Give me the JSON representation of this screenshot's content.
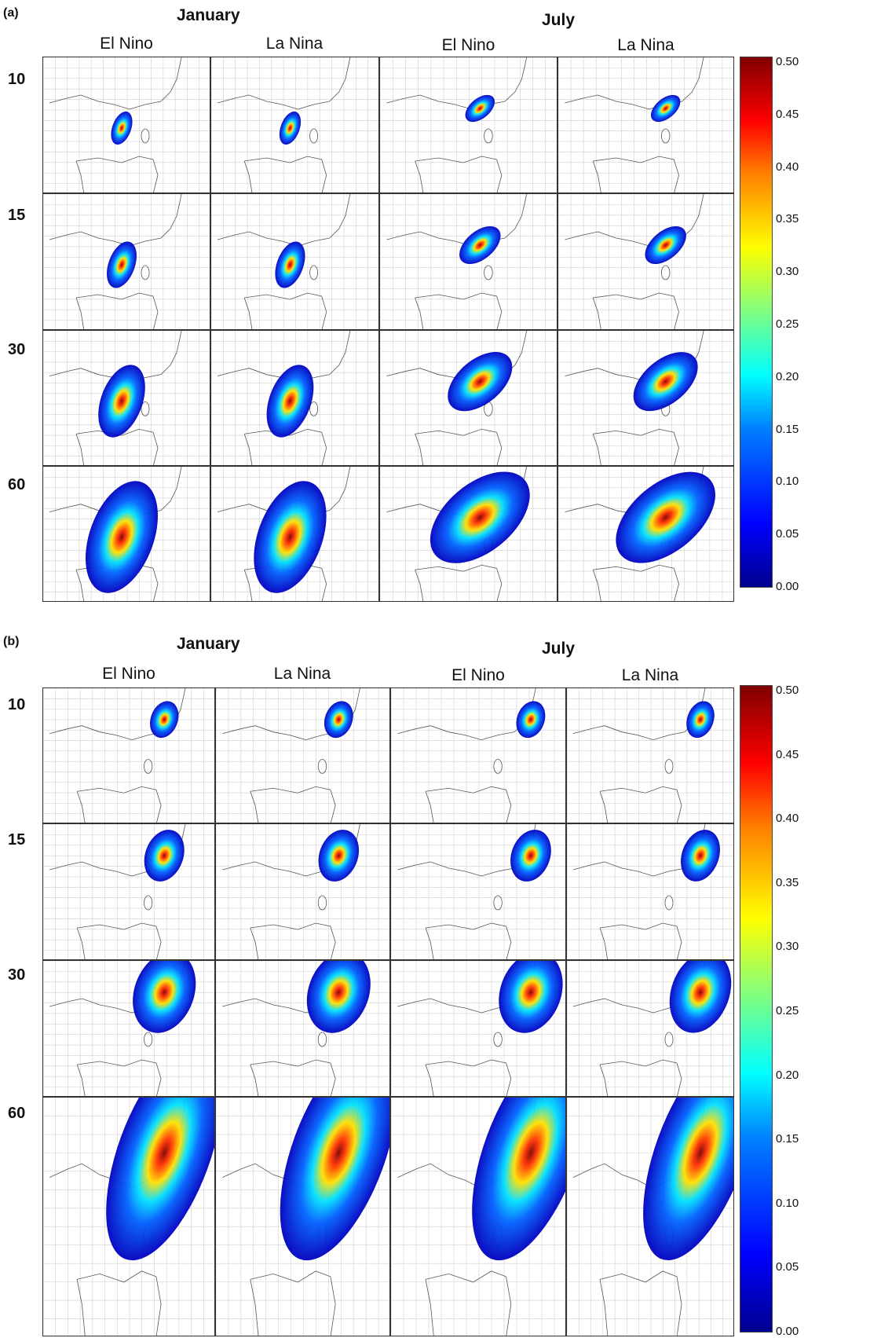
{
  "panels": [
    {
      "letter": "(a)",
      "months": [
        "January",
        "July"
      ],
      "columns": [
        "El Nino",
        "La Nina",
        "El Nino",
        "La Nina"
      ],
      "rows": [
        "10",
        "15",
        "30",
        "60"
      ],
      "colorbar_ticks": [
        "0.50",
        "0.45",
        "0.40",
        "0.35",
        "0.30",
        "0.25",
        "0.20",
        "0.15",
        "0.10",
        "0.05",
        "0.00"
      ]
    },
    {
      "letter": "(b)",
      "months": [
        "January",
        "July"
      ],
      "columns": [
        "El Nino",
        "La Nina",
        "El Nino",
        "La Nina"
      ],
      "rows": [
        "10",
        "15",
        "30",
        "60"
      ],
      "colorbar_ticks": [
        "0.50",
        "0.45",
        "0.40",
        "0.35",
        "0.30",
        "0.25",
        "0.20",
        "0.15",
        "0.10",
        "0.05",
        "0.00"
      ]
    }
  ],
  "colorscale": [
    "#00008f",
    "#0000ff",
    "#0080ff",
    "#00ffff",
    "#80ff80",
    "#ffff00",
    "#ff8000",
    "#ff0000",
    "#800000"
  ]
}
